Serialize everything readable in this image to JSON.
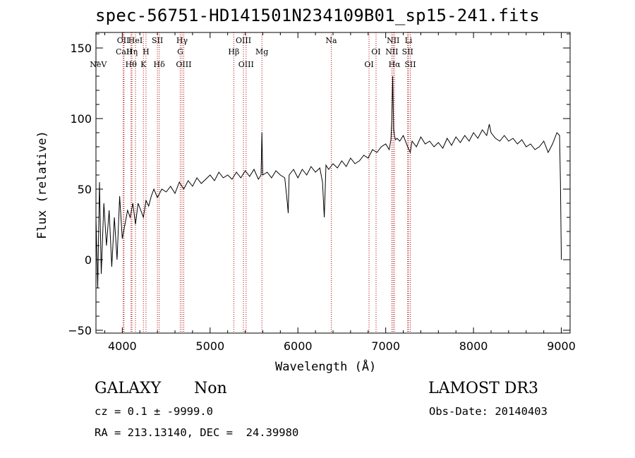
{
  "figure": {
    "title": "spec-56751-HD141501N234109B01_sp15-241.fits",
    "object_class": "GALAXY",
    "subclass": "Non",
    "survey": "LAMOST DR3",
    "cz_line": "cz = 0.1 ± -9999.0",
    "obs_date": "Obs-Date: 20140403",
    "coords_line": "RA = 213.13140, DEC =  24.39980"
  },
  "colors": {
    "line": "#000000",
    "marker": "#b00000",
    "axis": "#000000"
  },
  "chart_data": {
    "type": "line",
    "title": "spec-56751-HD141501N234109B01_sp15-241.fits",
    "xlabel": "Wavelength (Å)",
    "ylabel": "Flux (relative)",
    "xlim": [
      3700,
      9100
    ],
    "ylim": [
      -52,
      161
    ],
    "x_ticks": [
      4000,
      5000,
      6000,
      7000,
      8000,
      9000
    ],
    "y_ticks": [
      -50,
      0,
      50,
      100,
      150
    ],
    "series": [
      {
        "name": "flux",
        "x": [
          3700,
          3720,
          3740,
          3760,
          3790,
          3820,
          3850,
          3880,
          3910,
          3940,
          3970,
          4000,
          4030,
          4060,
          4090,
          4120,
          4150,
          4180,
          4210,
          4240,
          4270,
          4300,
          4330,
          4360,
          4400,
          4450,
          4500,
          4550,
          4600,
          4650,
          4700,
          4750,
          4800,
          4850,
          4900,
          4950,
          5000,
          5050,
          5100,
          5150,
          5200,
          5250,
          5300,
          5350,
          5400,
          5450,
          5500,
          5550,
          5580,
          5590,
          5600,
          5650,
          5700,
          5750,
          5800,
          5850,
          5880,
          5890,
          5900,
          5950,
          6000,
          6050,
          6100,
          6150,
          6200,
          6250,
          6280,
          6300,
          6310,
          6320,
          6350,
          6400,
          6450,
          6500,
          6550,
          6600,
          6650,
          6700,
          6750,
          6800,
          6850,
          6900,
          6950,
          7000,
          7040,
          7060,
          7070,
          7080,
          7090,
          7100,
          7110,
          7130,
          7160,
          7200,
          7250,
          7280,
          7300,
          7350,
          7400,
          7450,
          7500,
          7550,
          7600,
          7650,
          7700,
          7750,
          7800,
          7850,
          7900,
          7950,
          8000,
          8050,
          8100,
          8150,
          8180,
          8200,
          8250,
          8300,
          8350,
          8400,
          8450,
          8500,
          8550,
          8600,
          8650,
          8700,
          8750,
          8800,
          8850,
          8900,
          8950,
          8980,
          8990,
          9000
        ],
        "y": [
          30,
          -20,
          55,
          -10,
          40,
          10,
          35,
          -5,
          30,
          0,
          45,
          15,
          25,
          35,
          30,
          40,
          25,
          40,
          35,
          30,
          42,
          38,
          45,
          50,
          44,
          50,
          48,
          52,
          47,
          55,
          50,
          56,
          52,
          58,
          54,
          57,
          60,
          56,
          62,
          58,
          60,
          57,
          62,
          58,
          63,
          59,
          64,
          57,
          60,
          90,
          60,
          62,
          58,
          63,
          60,
          58,
          40,
          33,
          60,
          64,
          58,
          64,
          60,
          66,
          62,
          65,
          55,
          30,
          48,
          67,
          64,
          68,
          65,
          70,
          66,
          72,
          68,
          70,
          74,
          72,
          78,
          76,
          80,
          82,
          78,
          85,
          100,
          130,
          92,
          88,
          85,
          86,
          84,
          88,
          80,
          76,
          84,
          80,
          87,
          82,
          84,
          80,
          83,
          79,
          86,
          81,
          87,
          83,
          88,
          84,
          90,
          86,
          92,
          88,
          96,
          90,
          86,
          84,
          88,
          84,
          86,
          82,
          85,
          80,
          82,
          78,
          80,
          84,
          76,
          82,
          90,
          88,
          55,
          0
        ]
      }
    ],
    "line_markers": [
      {
        "label": "NeV",
        "wavelength": 3726,
        "row": 3,
        "line": false
      },
      {
        "label": "OII",
        "wavelength": 4010,
        "row": 1,
        "line": true
      },
      {
        "label": "CaII",
        "wavelength": 4020,
        "row": 2,
        "line": true
      },
      {
        "label": "Hθ",
        "wavelength": 4100,
        "row": 3,
        "line": true
      },
      {
        "label": "HeI",
        "wavelength": 4150,
        "row": 1,
        "line": true
      },
      {
        "label": "Hη",
        "wavelength": 4110,
        "row": 2,
        "line": true
      },
      {
        "label": "K",
        "wavelength": 4240,
        "row": 3,
        "line": true
      },
      {
        "label": "H",
        "wavelength": 4270,
        "row": 2,
        "line": true
      },
      {
        "label": "SII",
        "wavelength": 4400,
        "row": 1,
        "line": true
      },
      {
        "label": "Hδ",
        "wavelength": 4420,
        "row": 3,
        "line": true
      },
      {
        "label": "Hγ",
        "wavelength": 4680,
        "row": 1,
        "line": true
      },
      {
        "label": "G",
        "wavelength": 4660,
        "row": 2,
        "line": true
      },
      {
        "label": "OIII",
        "wavelength": 4700,
        "row": 3,
        "line": true
      },
      {
        "label": "Hβ",
        "wavelength": 5270,
        "row": 2,
        "line": true
      },
      {
        "label": "OIII",
        "wavelength": 5380,
        "row": 1,
        "line": true
      },
      {
        "label": "OIII",
        "wavelength": 5410,
        "row": 3,
        "line": true
      },
      {
        "label": "Mg",
        "wavelength": 5590,
        "row": 2,
        "line": true
      },
      {
        "label": "Na",
        "wavelength": 6380,
        "row": 1,
        "line": true
      },
      {
        "label": "OI",
        "wavelength": 6810,
        "row": 3,
        "line": true
      },
      {
        "label": "OI",
        "wavelength": 6890,
        "row": 2,
        "line": true
      },
      {
        "label": "NII",
        "wavelength": 7085,
        "row": 1,
        "line": true
      },
      {
        "label": "NII",
        "wavelength": 7070,
        "row": 2,
        "line": true
      },
      {
        "label": "Hα",
        "wavelength": 7100,
        "row": 3,
        "line": true
      },
      {
        "label": "Li",
        "wavelength": 7260,
        "row": 1,
        "line": true
      },
      {
        "label": "SII",
        "wavelength": 7250,
        "row": 2,
        "line": true
      },
      {
        "label": "SII",
        "wavelength": 7280,
        "row": 3,
        "line": true
      }
    ]
  }
}
